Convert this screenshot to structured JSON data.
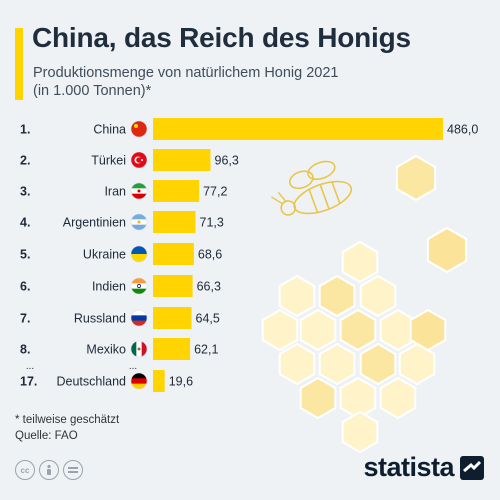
{
  "title": "China, das Reich des Honigs",
  "subtitle_line1": "Produktionsmenge von natürlichem Honig 2021",
  "subtitle_line2": "(in 1.000 Tonnen)*",
  "footnote": "* teilweise geschätzt",
  "source": "Quelle: FAO",
  "brand": "statista",
  "ellipsis": "...",
  "colors": {
    "bar": "#ffd400",
    "background": "#eef2f5",
    "accent": "#ffd400",
    "honeycomb": "#fbeaa0"
  },
  "icons": [
    "cc-icon",
    "attribution-icon",
    "no-derivatives-icon",
    "statista-logo-icon",
    "bee-icon",
    "honeycomb-icon"
  ],
  "chart_data": {
    "type": "bar",
    "orientation": "horizontal",
    "categories": [
      "China",
      "Türkei",
      "Iran",
      "Argentinien",
      "Ukraine",
      "Indien",
      "Russland",
      "Mexiko",
      "Deutschland"
    ],
    "ranks": [
      "1.",
      "2.",
      "3.",
      "4.",
      "5.",
      "6.",
      "7.",
      "8.",
      "17."
    ],
    "values": [
      486.0,
      96.3,
      77.2,
      71.3,
      68.6,
      66.3,
      64.5,
      62.1,
      19.6
    ],
    "value_labels": [
      "486,0",
      "96,3",
      "77,2",
      "71,3",
      "68,6",
      "66,3",
      "64,5",
      "62,1",
      "19,6"
    ],
    "flags": [
      "china",
      "turkey",
      "iran",
      "argentina",
      "ukraine",
      "india",
      "russia",
      "mexico",
      "germany"
    ],
    "xlim": [
      0,
      486.0
    ],
    "grid": false,
    "legend": "none"
  }
}
